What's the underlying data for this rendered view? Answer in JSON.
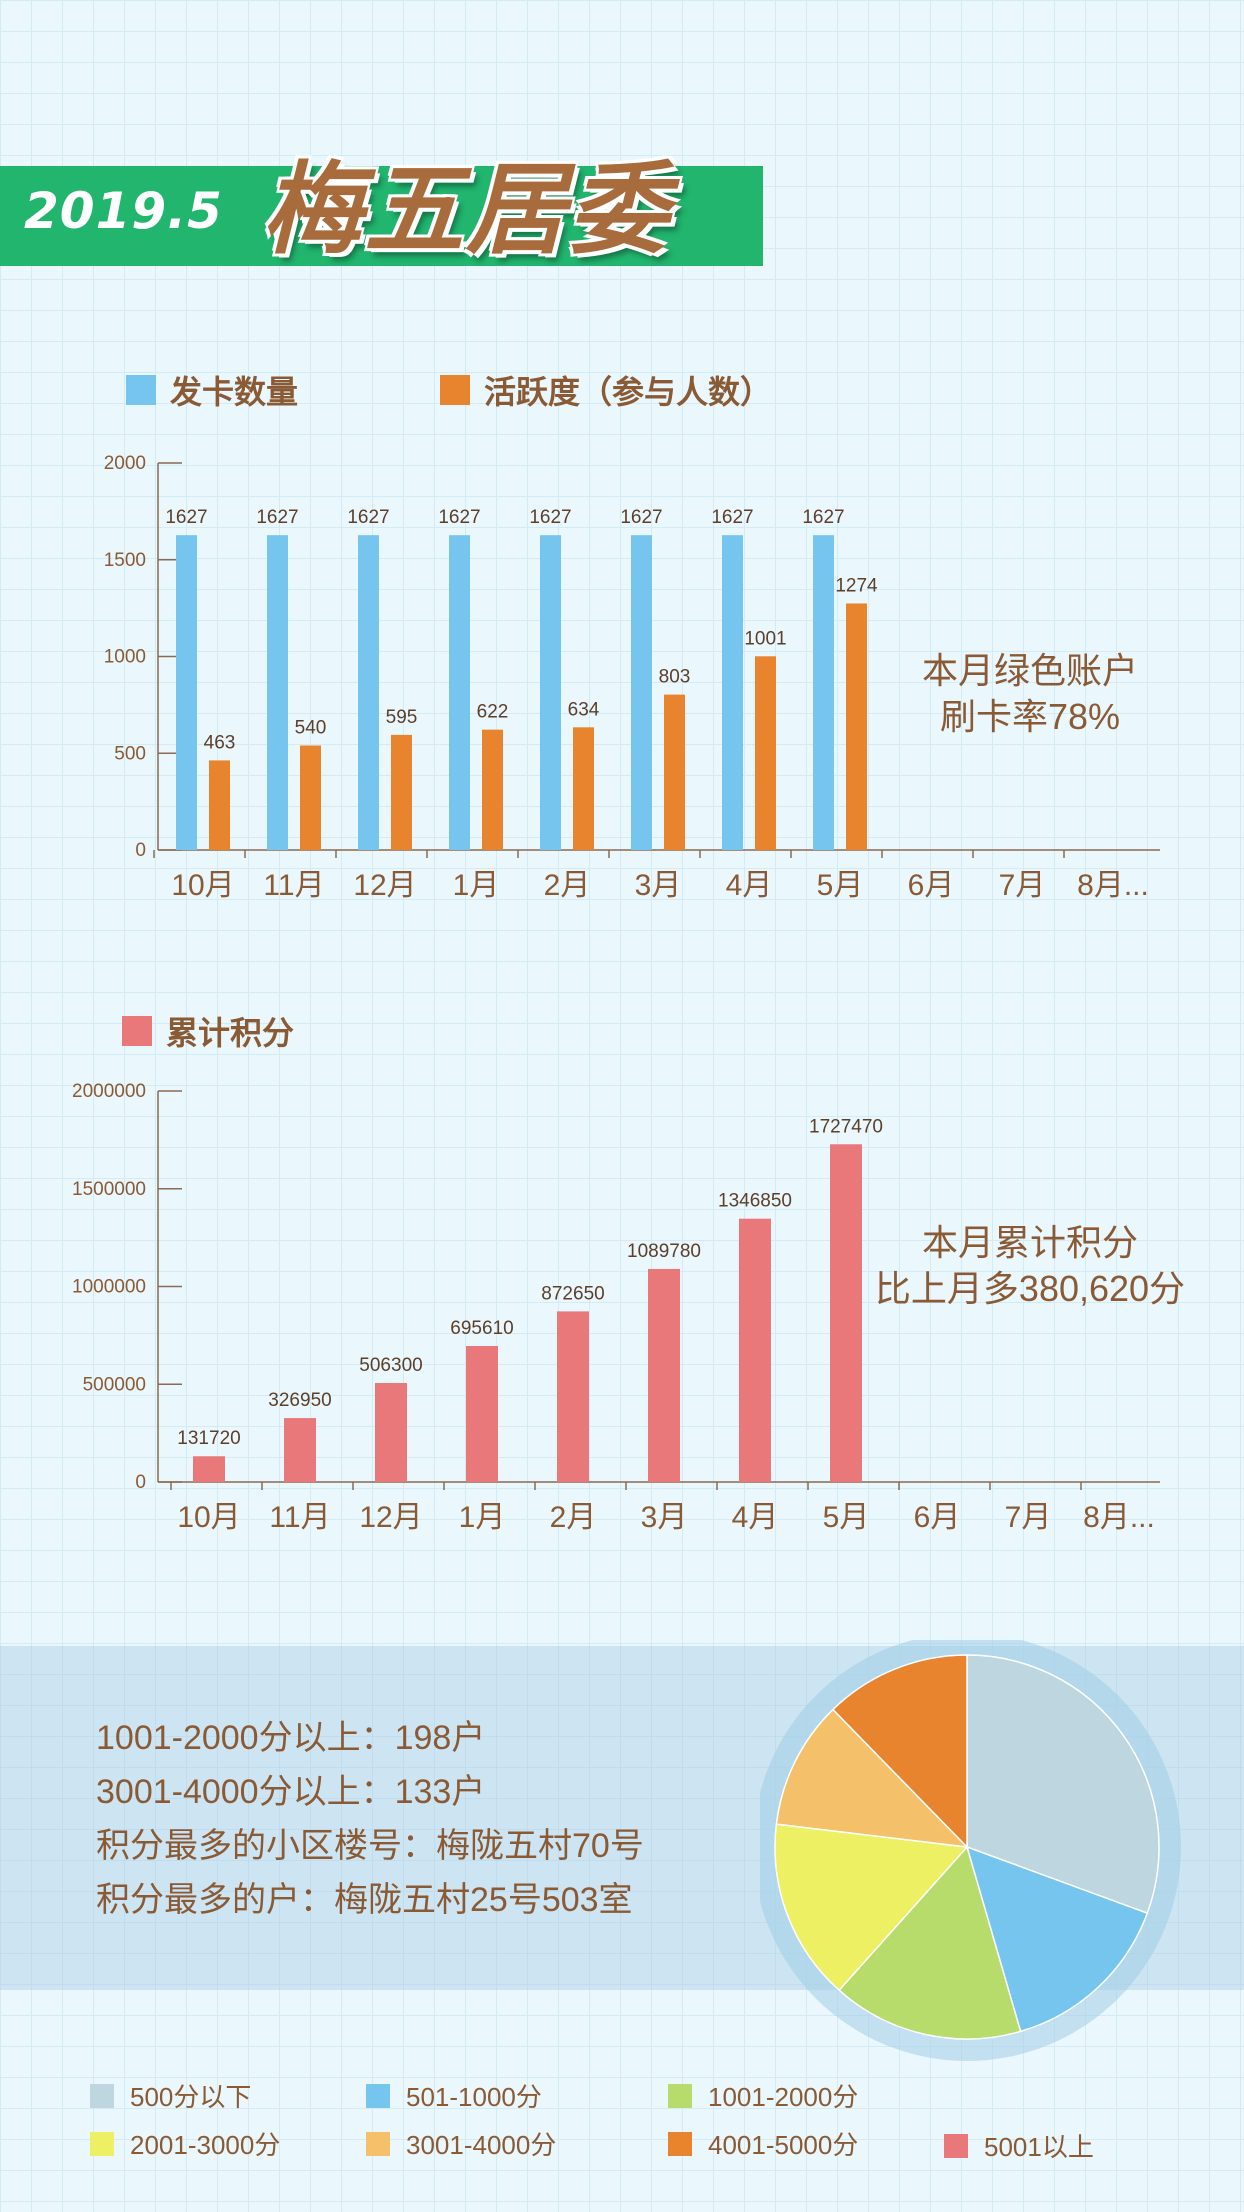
{
  "header": {
    "date": "2019.5",
    "title": "梅五居委"
  },
  "chart1_legend": [
    {
      "label": "发卡数量",
      "color": "#75c5ef"
    },
    {
      "label": "活跃度（参与人数）",
      "color": "#e8832e"
    }
  ],
  "chart1_note": [
    "本月绿色账户",
    "刷卡率78%"
  ],
  "chart2_legend": [
    {
      "label": "累计积分",
      "color": "#e8787a"
    }
  ],
  "chart2_note": [
    "本月累计积分",
    "比上月多380,620分"
  ],
  "stats": [
    "1001-2000分以上：198户",
    "3001-4000分以上：133户",
    "积分最多的小区楼号：梅陇五村70号",
    "积分最多的户：梅陇五村25号503室"
  ],
  "chart_data": [
    {
      "type": "bar",
      "categories": [
        "10月",
        "11月",
        "12月",
        "1月",
        "2月",
        "3月",
        "4月",
        "5月",
        "6月",
        "7月",
        "8月..."
      ],
      "series": [
        {
          "name": "发卡数量",
          "color": "#75c5ef",
          "values": [
            1627,
            1627,
            1627,
            1627,
            1627,
            1627,
            1627,
            1627,
            null,
            null,
            null
          ]
        },
        {
          "name": "活跃度（参与人数）",
          "color": "#e8832e",
          "values": [
            463,
            540,
            595,
            622,
            634,
            803,
            1001,
            1274,
            null,
            null,
            null
          ]
        }
      ],
      "yticks": [
        0,
        500,
        1000,
        1500,
        2000
      ],
      "ylim": [
        0,
        2000
      ],
      "grid": false,
      "legend": "top-left"
    },
    {
      "type": "bar",
      "categories": [
        "10月",
        "11月",
        "12月",
        "1月",
        "2月",
        "3月",
        "4月",
        "5月",
        "6月",
        "7月",
        "8月..."
      ],
      "series": [
        {
          "name": "累计积分",
          "color": "#e8787a",
          "values": [
            131720,
            326950,
            506300,
            695610,
            872650,
            1089780,
            1346850,
            1727470,
            null,
            null,
            null
          ]
        }
      ],
      "yticks": [
        0,
        500000,
        1000000,
        1500000,
        2000000
      ],
      "ylim": [
        0,
        2000000
      ],
      "grid": false,
      "legend": "top-left"
    },
    {
      "type": "pie",
      "labels": [
        "500分以下",
        "501-1000分",
        "1001-2000分",
        "2001-3000分",
        "3001-4000分",
        "4001-5000分",
        "5001以上"
      ],
      "values": [
        30.6,
        14.9,
        16.1,
        15.3,
        10.8,
        12.3,
        0
      ],
      "colors": [
        "#bed6df",
        "#75c5ef",
        "#b7dc6b",
        "#ecf062",
        "#f4c16a",
        "#e8832e",
        "#e8787a"
      ],
      "legend": "bottom"
    }
  ]
}
